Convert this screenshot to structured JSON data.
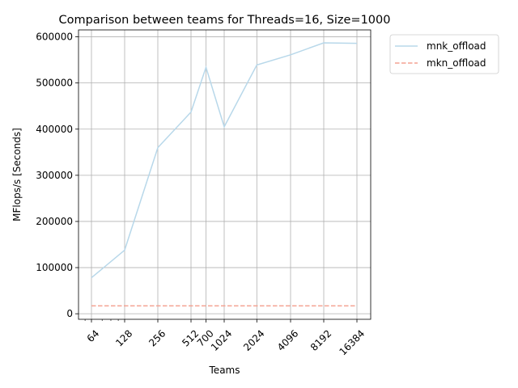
{
  "chart_data": {
    "type": "line",
    "title": "Comparison between teams for Threads=16, Size=1000",
    "xlabel": "Teams",
    "ylabel": "MFlops/s [Seconds]",
    "xscale": "log2",
    "x": [
      64,
      128,
      256,
      512,
      700,
      1024,
      2024,
      4096,
      8192,
      16384
    ],
    "x_tick_labels": [
      "64",
      "128",
      "256",
      "512",
      "700",
      "1024",
      "2024",
      "4096",
      "8192",
      "16384"
    ],
    "y_ticks": [
      0,
      100000,
      200000,
      300000,
      400000,
      500000,
      600000
    ],
    "y_tick_labels": [
      "0",
      "100000",
      "200000",
      "300000",
      "400000",
      "500000",
      "600000"
    ],
    "ylim": [
      -12000,
      615000
    ],
    "grid": true,
    "legend_position": "outside-top-right",
    "series": [
      {
        "name": "mnk_offload",
        "color": "#b8d8ea",
        "dash": "solid",
        "values": [
          78000,
          138000,
          360000,
          437000,
          534000,
          405000,
          539000,
          561000,
          587000,
          586000
        ]
      },
      {
        "name": "mkn_offload",
        "color": "#f4a292",
        "dash": "dashed",
        "values": [
          17000,
          17000,
          17000,
          17000,
          17000,
          17000,
          17000,
          17000,
          17000,
          17000
        ]
      }
    ]
  }
}
